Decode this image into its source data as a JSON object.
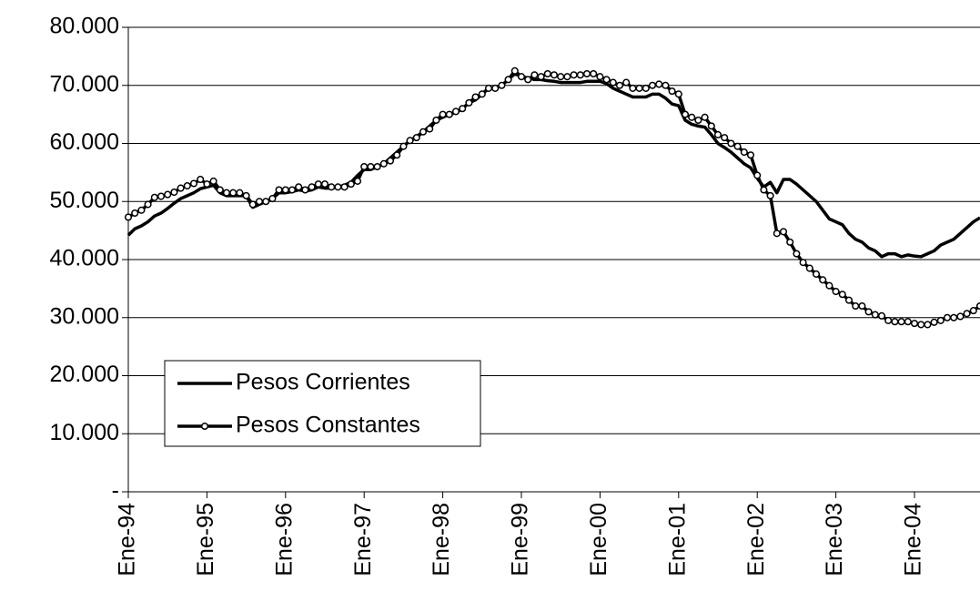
{
  "chart_data": {
    "type": "line",
    "categories": [
      "Ene-94",
      null,
      null,
      null,
      null,
      null,
      null,
      null,
      null,
      null,
      null,
      null,
      "Ene-95",
      null,
      null,
      null,
      null,
      null,
      null,
      null,
      null,
      null,
      null,
      null,
      "Ene-96",
      null,
      null,
      null,
      null,
      null,
      null,
      null,
      null,
      null,
      null,
      null,
      "Ene-97",
      null,
      null,
      null,
      null,
      null,
      null,
      null,
      null,
      null,
      null,
      null,
      "Ene-98",
      null,
      null,
      null,
      null,
      null,
      null,
      null,
      null,
      null,
      null,
      null,
      "Ene-99",
      null,
      null,
      null,
      null,
      null,
      null,
      null,
      null,
      null,
      null,
      null,
      "Ene-00",
      null,
      null,
      null,
      null,
      null,
      null,
      null,
      null,
      null,
      null,
      null,
      "Ene-01",
      null,
      null,
      null,
      null,
      null,
      null,
      null,
      null,
      null,
      null,
      null,
      "Ene-02",
      null,
      null,
      null,
      null,
      null,
      null,
      null,
      null,
      null,
      null,
      null,
      "Ene-03",
      null,
      null,
      null,
      null,
      null,
      null,
      null,
      null,
      null,
      null,
      null,
      "Ene-04",
      null,
      null,
      null,
      null,
      null,
      null,
      null,
      null,
      null,
      null
    ],
    "series": [
      {
        "name": "Pesos Corrientes",
        "color": "#000000",
        "marker": "none",
        "values": [
          44200,
          45300,
          45800,
          46500,
          47500,
          48000,
          48800,
          49700,
          50500,
          51000,
          51500,
          52200,
          52500,
          52800,
          51500,
          51000,
          51000,
          51000,
          51000,
          49000,
          49500,
          50000,
          50500,
          51500,
          51500,
          51700,
          52000,
          51800,
          52000,
          52500,
          52300,
          52300,
          52500,
          52800,
          53300,
          54500,
          55500,
          55500,
          56000,
          56500,
          57500,
          58500,
          59500,
          60500,
          61200,
          62000,
          63000,
          64000,
          64500,
          65000,
          65300,
          66000,
          67000,
          67500,
          68500,
          69500,
          69500,
          70000,
          71000,
          72000,
          71500,
          71300,
          71000,
          71000,
          70800,
          70700,
          70500,
          70500,
          70500,
          70500,
          70700,
          70700,
          70700,
          70300,
          69500,
          69000,
          68500,
          68000,
          68000,
          68000,
          68500,
          68500,
          67800,
          66800,
          66500,
          64000,
          63300,
          63000,
          62800,
          61500,
          60000,
          59300,
          58500,
          57500,
          56500,
          55800,
          54000,
          52500,
          53300,
          51500,
          53800,
          53800,
          53000,
          52000,
          51000,
          50000,
          48500,
          47000,
          46500,
          46000,
          44500,
          43500,
          43000,
          42000,
          41500,
          40500,
          41000,
          41000,
          40500,
          40800,
          40600,
          40500,
          41000,
          41500,
          42500,
          43000,
          43500,
          44500,
          45500,
          46500,
          47200
        ]
      },
      {
        "name": "Pesos Constantes",
        "color": "#000000",
        "marker": "circle",
        "values": [
          47300,
          48000,
          48500,
          49500,
          50700,
          50900,
          51200,
          51600,
          52300,
          52700,
          53100,
          53800,
          53000,
          53500,
          52000,
          51500,
          51500,
          51500,
          51000,
          49500,
          50000,
          50000,
          50500,
          52000,
          52000,
          52000,
          52500,
          52000,
          52500,
          53000,
          53000,
          52500,
          52500,
          52500,
          53000,
          53500,
          56000,
          56000,
          56000,
          56500,
          57000,
          58000,
          59500,
          60500,
          61000,
          62000,
          62500,
          64000,
          65000,
          65000,
          65500,
          66000,
          67000,
          68000,
          68500,
          69500,
          69500,
          70000,
          71000,
          72500,
          71500,
          71000,
          71800,
          71500,
          72000,
          71800,
          71500,
          71500,
          71800,
          71800,
          72000,
          72000,
          71500,
          71000,
          70500,
          70000,
          70500,
          69500,
          69500,
          69500,
          70000,
          70200,
          70000,
          69000,
          68500,
          65000,
          64500,
          64000,
          64500,
          63000,
          61500,
          61000,
          60000,
          59500,
          58500,
          58000,
          54500,
          52000,
          51000,
          44500,
          44800,
          43000,
          41000,
          39500,
          38500,
          37500,
          36500,
          35500,
          34500,
          34000,
          33000,
          32000,
          32000,
          31000,
          30500,
          30300,
          29500,
          29300,
          29300,
          29300,
          29000,
          28800,
          28800,
          29200,
          29500,
          30000,
          30000,
          30200,
          30700,
          31200,
          32000
        ]
      }
    ],
    "ylim": [
      0,
      80000
    ],
    "yticks": [
      {
        "value": 0,
        "label": "-"
      },
      {
        "value": 10000,
        "label": "10.000"
      },
      {
        "value": 20000,
        "label": "20.000"
      },
      {
        "value": 30000,
        "label": "30.000"
      },
      {
        "value": 40000,
        "label": "40.000"
      },
      {
        "value": 50000,
        "label": "50.000"
      },
      {
        "value": 60000,
        "label": "60.000"
      },
      {
        "value": 70000,
        "label": "70.000"
      },
      {
        "value": 80000,
        "label": "80.000"
      }
    ],
    "grid": true,
    "legend": "lower left"
  }
}
